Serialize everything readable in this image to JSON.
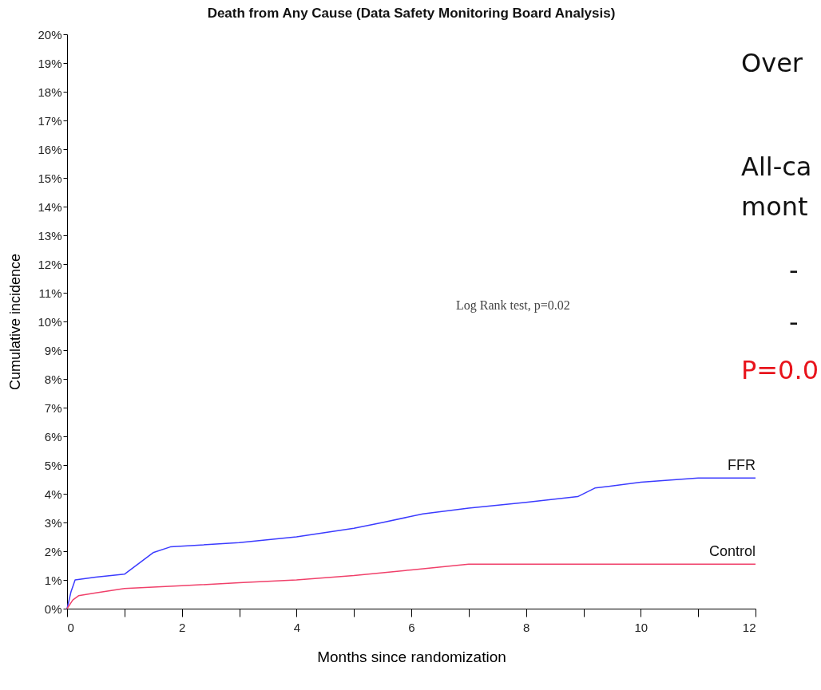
{
  "chart_data": {
    "type": "line",
    "title": "Death from Any Cause (Data Safety Monitoring Board Analysis)",
    "xlabel": "Months since randomization",
    "ylabel": "Cumulative incidence",
    "annotations": [
      "Log Rank test, p=0.02",
      "Over",
      "All-ca",
      "mont",
      "-",
      "-",
      "P=0.0"
    ],
    "series": [
      {
        "name": "FFR",
        "color": "#3b3bff",
        "x": [
          0,
          0.07,
          0.14,
          0.5,
          1.0,
          1.5,
          1.8,
          3,
          4,
          5,
          5.5,
          6.2,
          7,
          8,
          8.9,
          9.2,
          10,
          11,
          12
        ],
        "values": [
          0,
          0.6,
          1.0,
          1.1,
          1.2,
          1.95,
          2.15,
          2.3,
          2.5,
          2.8,
          3.0,
          3.3,
          3.5,
          3.7,
          3.9,
          4.2,
          4.4,
          4.55,
          4.55
        ]
      },
      {
        "name": "Control",
        "color": "#f0406a",
        "x": [
          0,
          0.1,
          0.2,
          0.5,
          1,
          2,
          3,
          4,
          5,
          6,
          7,
          8,
          10,
          12
        ],
        "values": [
          0,
          0.3,
          0.45,
          0.55,
          0.7,
          0.8,
          0.9,
          1.0,
          1.15,
          1.35,
          1.55,
          1.55,
          1.55,
          1.55
        ]
      }
    ],
    "xlim": [
      0,
      12
    ],
    "xticks": [
      0,
      {
        "value": 1,
        "label": null
      },
      2,
      {
        "value": 3,
        "label": null
      },
      4,
      {
        "value": 5,
        "label": null
      },
      6,
      {
        "value": 7,
        "label": null
      },
      8,
      {
        "value": 9,
        "label": null
      },
      10,
      {
        "value": 11,
        "label": null
      },
      12
    ],
    "ylim": [
      0,
      20
    ],
    "yticks": [
      {
        "value": 0,
        "label": "0%"
      },
      {
        "value": 1,
        "label": "1%"
      },
      {
        "value": 2,
        "label": "2%"
      },
      {
        "value": 3,
        "label": "3%"
      },
      {
        "value": 4,
        "label": "4%"
      },
      {
        "value": 5,
        "label": "5%"
      },
      {
        "value": 6,
        "label": "6%"
      },
      {
        "value": 7,
        "label": "7%"
      },
      {
        "value": 8,
        "label": "8%"
      },
      {
        "value": 9,
        "label": "9%"
      },
      {
        "value": 10,
        "label": "10%"
      },
      {
        "value": 11,
        "label": "11%"
      },
      {
        "value": 12,
        "label": "12%"
      },
      {
        "value": 13,
        "label": "13%"
      },
      {
        "value": 14,
        "label": "14%"
      },
      {
        "value": 15,
        "label": "15%"
      },
      {
        "value": 16,
        "label": "16%"
      },
      {
        "value": 17,
        "label": "17%"
      },
      {
        "value": 18,
        "label": "18%"
      },
      {
        "value": 19,
        "label": "19%"
      },
      {
        "value": 20,
        "label": "20%"
      }
    ],
    "grid": false,
    "legend": false,
    "line_style": "solid",
    "marker": "none"
  }
}
